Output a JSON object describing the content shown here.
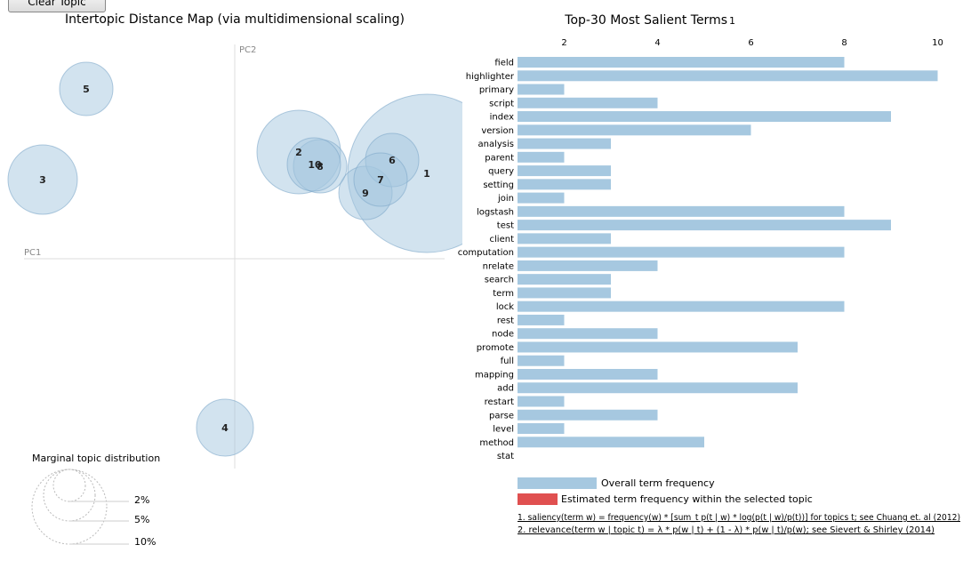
{
  "toolbar": {
    "clear_label": "Clear Topic"
  },
  "left_panel": {
    "title": "Intertopic Distance Map (via multidimensional scaling)",
    "pc1_label": "PC1",
    "pc2_label": "PC2",
    "marginal_title": "Marginal topic distribution",
    "marginal_labels": [
      "2%",
      "5%",
      "10%"
    ]
  },
  "topics": [
    {
      "id": "1",
      "label": "1"
    },
    {
      "id": "2",
      "label": "2"
    },
    {
      "id": "3",
      "label": "3"
    },
    {
      "id": "4",
      "label": "4"
    },
    {
      "id": "5",
      "label": "5"
    },
    {
      "id": "6",
      "label": "6"
    },
    {
      "id": "7",
      "label": "7"
    },
    {
      "id": "8",
      "label": "8"
    },
    {
      "id": "9",
      "label": "9"
    },
    {
      "id": "10",
      "label": "10"
    }
  ],
  "chart_data": {
    "type": "bar",
    "title": "Top-30 Most Salient Terms",
    "title_superscript": "1",
    "orientation": "horizontal",
    "xlim": [
      0,
      10
    ],
    "x_ticks": [
      "2",
      "4",
      "6",
      "8",
      "10"
    ],
    "categories": [
      "field",
      "highlighter",
      "primary",
      "script",
      "index",
      "version",
      "analysis",
      "parent",
      "query",
      "setting",
      "join",
      "logstash",
      "test",
      "client",
      "computation",
      "nrelate",
      "search",
      "term",
      "lock",
      "rest",
      "node",
      "promote",
      "full",
      "mapping",
      "add",
      "restart",
      "parse",
      "level",
      "method",
      "stat"
    ],
    "series": [
      {
        "name": "Overall term frequency",
        "color": "#a6c8e0",
        "values": [
          7,
          9,
          1,
          3,
          8,
          5,
          2,
          1,
          2,
          2,
          1,
          7,
          8,
          2,
          7,
          3,
          2,
          2,
          7,
          1,
          3,
          6,
          1,
          3,
          6,
          1,
          3,
          1,
          4,
          0
        ]
      }
    ],
    "legend": [
      {
        "label": "Overall term frequency",
        "color": "#a6c8e0"
      },
      {
        "label": "Estimated term frequency within the selected topic",
        "color": "#e05050"
      }
    ],
    "footnotes": [
      "1. saliency(term w) = frequency(w) * [sum_t p(t | w) * log(p(t | w)/p(t))] for topics t; see Chuang et. al (2012)",
      "2. relevance(term w | topic t) = λ * p(w | t) + (1 - λ) * p(w | t)/p(w); see Sievert & Shirley (2014)"
    ]
  },
  "colors": {
    "bubble": "#a6c8e0",
    "bubble_stroke": "#7fa9c9",
    "bar": "#a6c8e0",
    "selected": "#e05050"
  }
}
